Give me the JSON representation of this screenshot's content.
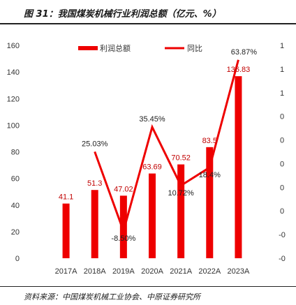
{
  "title": "图 31：我国煤炭机械行业利润总额（亿元、%）",
  "source": "资料来源：中国煤炭机械工业协会、中原证券研究所",
  "chart_data": {
    "type": "bar",
    "categories": [
      "2017A",
      "2018A",
      "2019A",
      "2020A",
      "2021A",
      "2022A",
      "2023A"
    ],
    "series": [
      {
        "name": "利润总额",
        "kind": "bar",
        "axis": "left",
        "color": "#ee0000",
        "values": [
          41.1,
          51.3,
          47.02,
          63.69,
          70.52,
          83.5,
          136.83
        ],
        "labels": [
          "41.1",
          "51.3",
          "47.02",
          "63.69",
          "70.52",
          "83.5",
          "136.83"
        ]
      },
      {
        "name": "同比",
        "kind": "line",
        "axis": "right",
        "color": "#ee0000",
        "values": [
          null,
          25.03,
          -8.5,
          35.45,
          10.72,
          18.4,
          63.87
        ],
        "labels": [
          "",
          "25.03%",
          "-8.50%",
          "35.45%",
          "10.72%",
          "18.4%",
          "63.87%"
        ]
      }
    ],
    "left_axis": {
      "min": 0,
      "max": 160,
      "ticks": [
        "0",
        "20",
        "40",
        "60",
        "80",
        "100",
        "120",
        "140",
        "160"
      ]
    },
    "right_axis": {
      "min": -20,
      "max": 70,
      "ticks": [
        "-0",
        "-0",
        "0",
        "0",
        "0",
        "0",
        "0",
        "1",
        "1",
        "1"
      ]
    },
    "legend_position": "top"
  }
}
